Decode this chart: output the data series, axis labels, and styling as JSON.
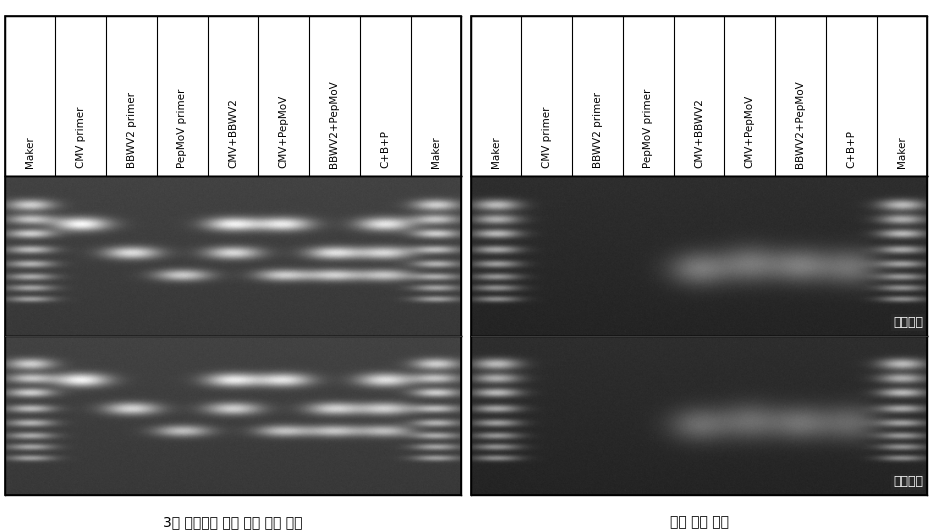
{
  "title": "",
  "left_caption": "3종 바이러스 감염 고추 핵산 혼합",
  "right_caption": "건전 고추 핵산",
  "label_1": "꽈리고추",
  "label_2": "청양고추",
  "col_labels_left": [
    "Maker",
    "CMV primer",
    "BBWV2 primer",
    "PepMoV primer",
    "CMV+BBWV2",
    "CMV+PepMoV",
    "BBWV2+PepMoV",
    "C+B+P",
    "Maker"
  ],
  "col_labels_right": [
    "Maker",
    "CMV primer",
    "BBWV2 primer",
    "PepMoV primer",
    "CMV+BBWV2",
    "CMV+PepMoV",
    "BBWV2+PepMoV",
    "C+B+P",
    "Maker"
  ],
  "fig_width": 9.32,
  "fig_height": 5.32,
  "bg_color": "#ffffff",
  "gel_bg_left": "#3a3a3a",
  "gel_bg_right": "#282828",
  "header_bg": "#ffffff",
  "caption_fontsize": 10,
  "label_fontsize": 7.5,
  "panel_label_fontsize": 9
}
